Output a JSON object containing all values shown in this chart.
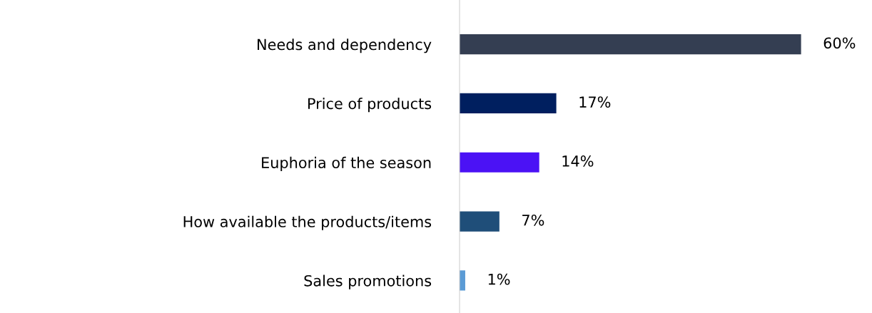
{
  "chart_data": {
    "type": "bar",
    "orientation": "horizontal",
    "categories": [
      "Needs and dependency",
      "Price of products",
      "Euphoria of the season",
      "How available the products/items",
      "Sales promotions"
    ],
    "values": [
      60,
      17,
      14,
      7,
      1
    ],
    "colors": [
      "#343e52",
      "#001f5f",
      "#4b12f5",
      "#1f4e79",
      "#5b9bd5"
    ],
    "value_labels": [
      "60%",
      "17%",
      "14%",
      "7%",
      "1%"
    ],
    "grid": false,
    "legend": false
  }
}
